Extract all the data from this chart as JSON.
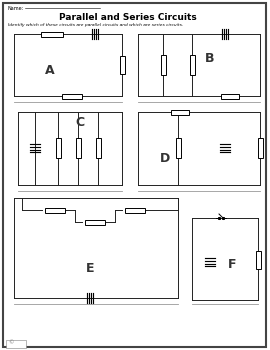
{
  "title": "Parallel and Series Circuits",
  "subtitle": "Identify which of these circuits are parallel circuits and which are series circuits.",
  "name_label": "Name:",
  "bg_color": "#ffffff",
  "line_color": "#222222",
  "label_color": "#333333",
  "answer_line_color": "#999999",
  "border_color": "#444444"
}
